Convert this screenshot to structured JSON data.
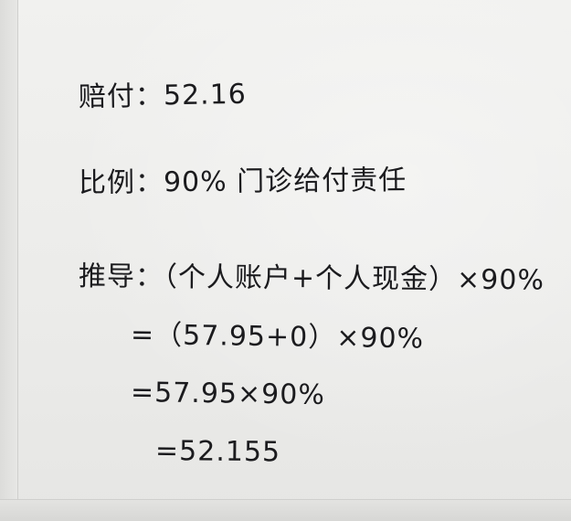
{
  "note": {
    "lines": [
      "赔付：52.16",
      "比例：90% 门诊给付责任",
      "推导：（个人账户+个人现金）×90%",
      "=（57.95+0）×90%",
      "=57.95×90%",
      "=52.155"
    ]
  }
}
